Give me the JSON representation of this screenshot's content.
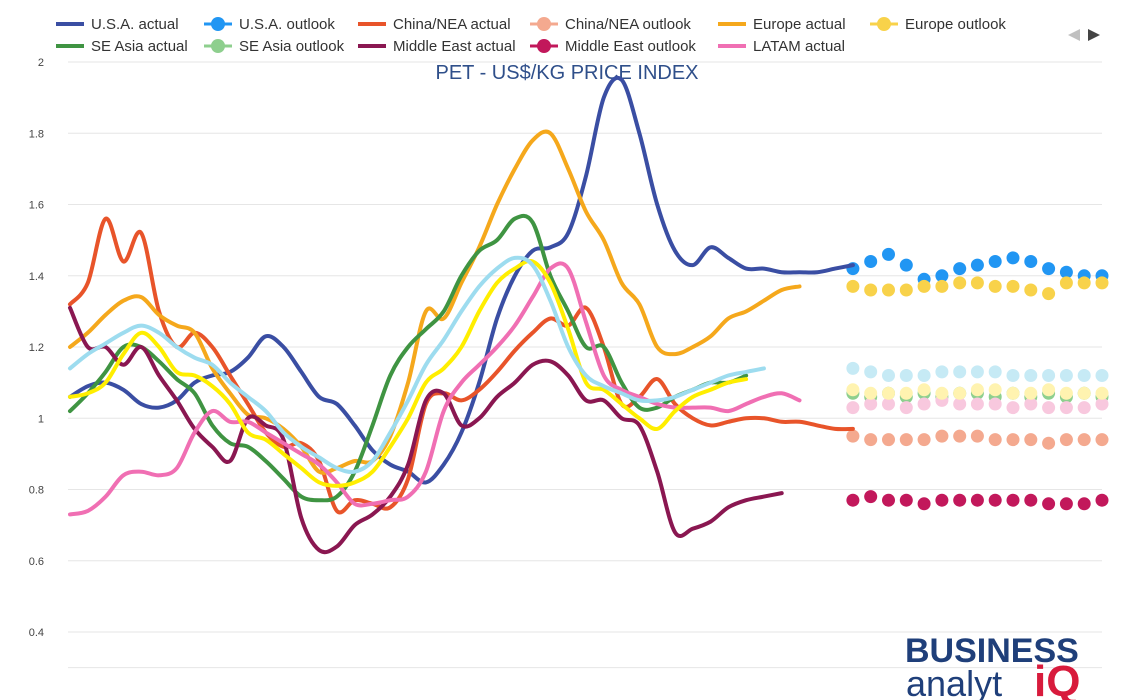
{
  "chart_data": {
    "type": "line",
    "title": "PET - US$/KG PRICE INDEX",
    "xlabel": "",
    "ylabel": "",
    "ylim": [
      0.4,
      2.0
    ],
    "yticks": [
      "0.4",
      "0.6",
      "0.8",
      "1",
      "1.2",
      "1.4",
      "1.6",
      "1.8",
      "2"
    ],
    "grid": true,
    "legend_position": "top",
    "series": [
      {
        "name": "U.S.A. actual",
        "color": "#3a4ea3",
        "style": "line",
        "start": 0,
        "values": [
          1.06,
          1.09,
          1.1,
          1.08,
          1.04,
          1.03,
          1.05,
          1.1,
          1.12,
          1.13,
          1.17,
          1.23,
          1.2,
          1.13,
          1.06,
          1.04,
          0.98,
          0.91,
          0.87,
          0.85,
          0.82,
          0.87,
          0.96,
          1.1,
          1.28,
          1.4,
          1.47,
          1.48,
          1.52,
          1.68,
          1.9,
          1.95,
          1.8,
          1.6,
          1.47,
          1.43,
          1.48,
          1.45,
          1.42,
          1.42,
          1.41,
          1.41,
          1.41,
          1.42,
          1.43
        ]
      },
      {
        "name": "U.S.A. outlook",
        "color": "#2196f3",
        "style": "markers",
        "start": 44,
        "values": [
          1.42,
          1.44,
          1.46,
          1.43,
          1.39,
          1.4,
          1.42,
          1.43,
          1.44,
          1.45,
          1.44,
          1.42,
          1.41,
          1.4,
          1.4
        ]
      },
      {
        "name": "China/NEA actual",
        "color": "#e8542a",
        "style": "line",
        "start": 0,
        "values": [
          1.32,
          1.38,
          1.56,
          1.44,
          1.52,
          1.3,
          1.2,
          1.24,
          1.2,
          1.12,
          1.04,
          0.96,
          0.92,
          0.93,
          0.88,
          0.74,
          0.77,
          0.76,
          0.75,
          0.83,
          1.04,
          1.07,
          1.05,
          1.08,
          1.13,
          1.19,
          1.24,
          1.28,
          1.26,
          1.31,
          1.2,
          1.04,
          1.06,
          1.11,
          1.04,
          1.0,
          0.98,
          0.99,
          1.0,
          1.0,
          0.99,
          0.99,
          0.98,
          0.97,
          0.97
        ]
      },
      {
        "name": "China/NEA outlook",
        "color": "#f4a98f",
        "style": "markers",
        "start": 44,
        "values": [
          0.95,
          0.94,
          0.94,
          0.94,
          0.94,
          0.95,
          0.95,
          0.95,
          0.94,
          0.94,
          0.94,
          0.93,
          0.94,
          0.94,
          0.94
        ]
      },
      {
        "name": "Europe actual",
        "color": "#f5a81c",
        "style": "line",
        "start": 0,
        "values": [
          1.2,
          1.24,
          1.29,
          1.33,
          1.34,
          1.29,
          1.26,
          1.24,
          1.14,
          1.07,
          1.01,
          1.0,
          0.97,
          0.92,
          0.85,
          0.86,
          0.88,
          0.88,
          0.95,
          1.1,
          1.3,
          1.28,
          1.38,
          1.48,
          1.6,
          1.7,
          1.78,
          1.8,
          1.7,
          1.58,
          1.5,
          1.38,
          1.32,
          1.2,
          1.18,
          1.2,
          1.23,
          1.28,
          1.3,
          1.33,
          1.36,
          1.37
        ]
      },
      {
        "name": "Europe outlook",
        "color": "#f8d24a",
        "style": "markers",
        "start": 44,
        "values": [
          1.37,
          1.36,
          1.36,
          1.36,
          1.37,
          1.37,
          1.38,
          1.38,
          1.37,
          1.37,
          1.36,
          1.35,
          1.38,
          1.38,
          1.38
        ]
      },
      {
        "name": "SE Asia actual",
        "color": "#3f9442",
        "style": "line",
        "start": 0,
        "values": [
          1.02,
          1.07,
          1.13,
          1.2,
          1.2,
          1.16,
          1.11,
          1.07,
          0.98,
          0.93,
          0.92,
          0.88,
          0.83,
          0.78,
          0.77,
          0.78,
          0.85,
          0.98,
          1.12,
          1.2,
          1.25,
          1.3,
          1.4,
          1.47,
          1.5,
          1.56,
          1.55,
          1.4,
          1.3,
          1.2,
          1.2,
          1.1,
          1.03,
          1.03,
          1.06,
          1.08,
          1.1,
          1.1,
          1.12
        ]
      },
      {
        "name": "SE Asia outlook",
        "color": "#8ecf8e",
        "style": "markers",
        "start": 44,
        "values": [
          1.07,
          1.06,
          1.07,
          1.06,
          1.07,
          1.06,
          1.07,
          1.07,
          1.06,
          1.07,
          1.06,
          1.07,
          1.06,
          1.07,
          1.06
        ]
      },
      {
        "name": "Middle East actual",
        "color": "#8a1751",
        "style": "line",
        "start": 0,
        "values": [
          1.31,
          1.2,
          1.2,
          1.15,
          1.2,
          1.12,
          1.05,
          0.97,
          0.92,
          0.88,
          1.0,
          0.98,
          0.94,
          0.72,
          0.63,
          0.64,
          0.7,
          0.73,
          0.78,
          0.87,
          1.05,
          1.07,
          0.98,
          1.0,
          1.06,
          1.1,
          1.15,
          1.16,
          1.12,
          1.05,
          1.05,
          1.0,
          0.98,
          0.85,
          0.68,
          0.69,
          0.71,
          0.75,
          0.77,
          0.78,
          0.79
        ]
      },
      {
        "name": "Middle East outlook",
        "color": "#c2185b",
        "style": "markers",
        "start": 44,
        "values": [
          0.77,
          0.78,
          0.77,
          0.77,
          0.76,
          0.77,
          0.77,
          0.77,
          0.77,
          0.77,
          0.77,
          0.76,
          0.76,
          0.76,
          0.77
        ]
      },
      {
        "name": "LATAM actual",
        "color": "#f06fb3",
        "style": "line",
        "start": 0,
        "values": [
          0.73,
          0.74,
          0.78,
          0.84,
          0.85,
          0.84,
          0.86,
          0.96,
          1.02,
          0.99,
          0.99,
          0.96,
          0.93,
          0.9,
          0.87,
          0.82,
          0.76,
          0.76,
          0.77,
          0.78,
          0.85,
          1.02,
          1.1,
          1.15,
          1.2,
          1.26,
          1.34,
          1.42,
          1.42,
          1.27,
          1.12,
          1.08,
          1.06,
          1.04,
          1.03,
          1.03,
          1.03,
          1.02,
          1.04,
          1.06,
          1.07,
          1.05
        ]
      },
      {
        "name": "LATAM outlook",
        "color": "#f8c8de",
        "style": "markers",
        "start": 44,
        "values": [
          1.03,
          1.04,
          1.04,
          1.03,
          1.04,
          1.05,
          1.04,
          1.04,
          1.04,
          1.03,
          1.04,
          1.03,
          1.03,
          1.03,
          1.04
        ],
        "in_legend": false
      },
      {
        "name": "Global actual",
        "color": "#ffee00",
        "style": "line",
        "start": 0,
        "values": [
          1.06,
          1.07,
          1.1,
          1.18,
          1.24,
          1.2,
          1.13,
          1.12,
          1.09,
          1.04,
          0.96,
          0.94,
          0.9,
          0.86,
          0.82,
          0.81,
          0.82,
          0.85,
          0.92,
          1.0,
          1.1,
          1.14,
          1.2,
          1.3,
          1.38,
          1.42,
          1.44,
          1.38,
          1.25,
          1.1,
          1.08,
          1.04,
          1.0,
          0.97,
          1.02,
          1.06,
          1.08,
          1.1,
          1.11
        ],
        "in_legend": false
      },
      {
        "name": "Global outlook",
        "color": "#fff3b0",
        "style": "markers",
        "start": 44,
        "values": [
          1.08,
          1.07,
          1.07,
          1.07,
          1.08,
          1.07,
          1.07,
          1.08,
          1.08,
          1.07,
          1.07,
          1.08,
          1.07,
          1.07,
          1.07
        ],
        "in_legend": false
      },
      {
        "name": "Composite actual",
        "color": "#9ddcef",
        "style": "line",
        "start": 0,
        "values": [
          1.14,
          1.18,
          1.21,
          1.24,
          1.26,
          1.24,
          1.2,
          1.17,
          1.15,
          1.1,
          1.06,
          1.02,
          0.96,
          0.92,
          0.89,
          0.86,
          0.85,
          0.88,
          0.96,
          1.05,
          1.15,
          1.22,
          1.3,
          1.37,
          1.42,
          1.45,
          1.43,
          1.33,
          1.2,
          1.12,
          1.09,
          1.07,
          1.05,
          1.05,
          1.06,
          1.08,
          1.1,
          1.12,
          1.13,
          1.14
        ]
      },
      {
        "name": "Composite outlook",
        "color": "#c6eaf5",
        "style": "markers",
        "start": 44,
        "values": [
          1.14,
          1.13,
          1.12,
          1.12,
          1.12,
          1.13,
          1.13,
          1.13,
          1.13,
          1.12,
          1.12,
          1.12,
          1.12,
          1.12,
          1.12
        ],
        "in_legend": false
      }
    ],
    "x_count": 59
  },
  "legend": [
    {
      "label": "U.S.A. actual",
      "color": "#3a4ea3",
      "marker": "line"
    },
    {
      "label": "U.S.A. outlook",
      "color": "#2196f3",
      "marker": "dot"
    },
    {
      "label": "China/NEA actual",
      "color": "#e8542a",
      "marker": "line"
    },
    {
      "label": "China/NEA outlook",
      "color": "#f4a98f",
      "marker": "dot"
    },
    {
      "label": "Europe actual",
      "color": "#f5a81c",
      "marker": "line"
    },
    {
      "label": "Europe outlook",
      "color": "#f8d24a",
      "marker": "dot"
    },
    {
      "label": "SE Asia actual",
      "color": "#3f9442",
      "marker": "line"
    },
    {
      "label": "SE Asia outlook",
      "color": "#8ecf8e",
      "marker": "dot"
    },
    {
      "label": "Middle East actual",
      "color": "#8a1751",
      "marker": "line"
    },
    {
      "label": "Middle East outlook",
      "color": "#c2185b",
      "marker": "dot"
    },
    {
      "label": "LATAM actual",
      "color": "#f06fb3",
      "marker": "line"
    }
  ],
  "logo": {
    "line1": "BUSINESS",
    "line2": "analyt",
    "accent": "iQ"
  }
}
